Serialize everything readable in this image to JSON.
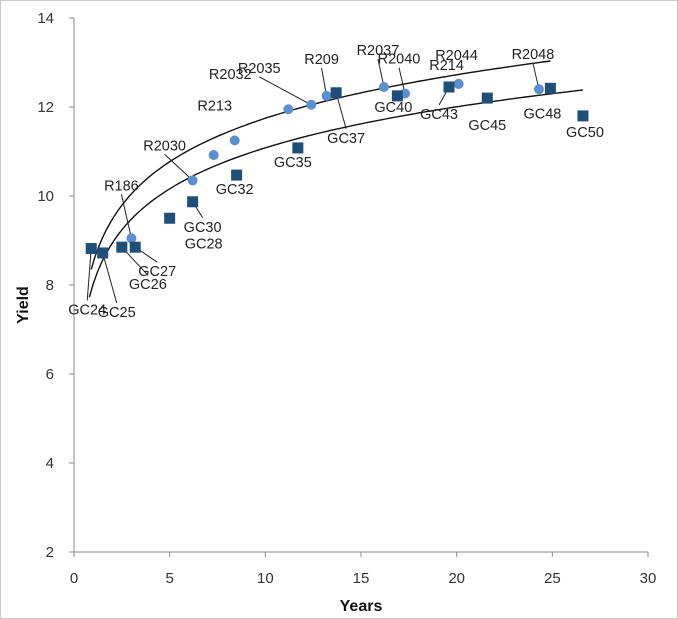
{
  "chart_data": {
    "type": "scatter",
    "xlabel": "Years",
    "ylabel": "Yield",
    "xlim": [
      0,
      30
    ],
    "ylim": [
      2,
      14
    ],
    "x_ticks": [
      0,
      5,
      10,
      15,
      20,
      25,
      30
    ],
    "y_ticks": [
      2,
      4,
      6,
      8,
      10,
      12,
      14
    ],
    "grid": false,
    "legend": "none",
    "colors": {
      "R": "#5b8fcf",
      "GC": "#1f4e79",
      "trend": "#111111"
    },
    "series": [
      {
        "marker": "circle",
        "points": [
          {
            "label": "R186",
            "x": 3.0,
            "y": 9.05
          },
          {
            "label": "R2030",
            "x": 6.2,
            "y": 10.35
          },
          {
            "label": "",
            "x": 7.3,
            "y": 10.92
          },
          {
            "label": "R213",
            "x": 8.4,
            "y": 11.25
          },
          {
            "label": "R2032",
            "x": 11.2,
            "y": 11.95
          },
          {
            "label": "R2035",
            "x": 12.4,
            "y": 12.05
          },
          {
            "label": "R209",
            "x": 13.2,
            "y": 12.25
          },
          {
            "label": "R2037",
            "x": 16.2,
            "y": 12.45
          },
          {
            "label": "R2040",
            "x": 17.3,
            "y": 12.3
          },
          {
            "label": "R214",
            "x": 20.1,
            "y": 12.52
          },
          {
            "label": "R2044",
            "x": 20.1,
            "y": 12.52
          },
          {
            "label": "R2048",
            "x": 24.3,
            "y": 12.4
          }
        ]
      },
      {
        "marker": "square",
        "points": [
          {
            "label": "GC24",
            "x": 0.9,
            "y": 8.82
          },
          {
            "label": "GC25",
            "x": 1.5,
            "y": 8.72
          },
          {
            "label": "GC26",
            "x": 2.5,
            "y": 8.85
          },
          {
            "label": "GC27",
            "x": 3.2,
            "y": 8.85
          },
          {
            "label": "GC28",
            "x": 5.0,
            "y": 9.5
          },
          {
            "label": "GC30",
            "x": 6.2,
            "y": 9.87
          },
          {
            "label": "GC32",
            "x": 8.5,
            "y": 10.47
          },
          {
            "label": "GC35",
            "x": 11.7,
            "y": 11.08
          },
          {
            "label": "GC37",
            "x": 13.7,
            "y": 12.32
          },
          {
            "label": "GC40",
            "x": 16.9,
            "y": 12.25
          },
          {
            "label": "GC43",
            "x": 19.6,
            "y": 12.45
          },
          {
            "label": "GC45",
            "x": 21.6,
            "y": 12.2
          },
          {
            "label": "GC48",
            "x": 24.9,
            "y": 12.42
          },
          {
            "label": "GC50",
            "x": 26.6,
            "y": 11.8
          }
        ]
      }
    ]
  }
}
